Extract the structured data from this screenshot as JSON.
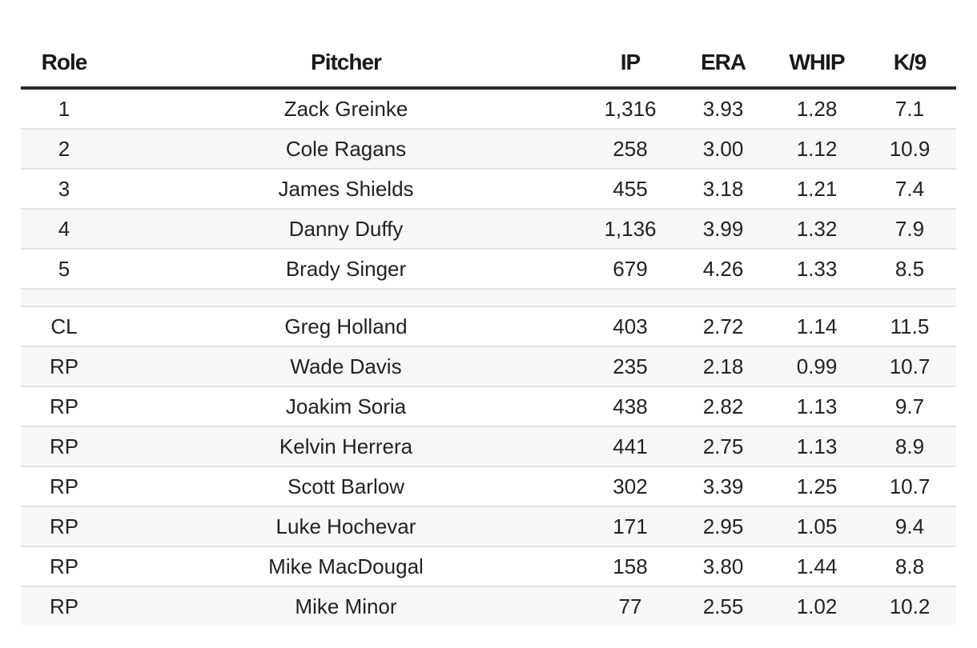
{
  "table": {
    "headers": {
      "role": "Role",
      "pitcher": "Pitcher",
      "ip": "IP",
      "era": "ERA",
      "whip": "WHIP",
      "k9": "K/9"
    },
    "rows": [
      {
        "role": "1",
        "pitcher": "Zack Greinke",
        "ip": "1,316",
        "era": "3.93",
        "whip": "1.28",
        "k9": "7.1"
      },
      {
        "role": "2",
        "pitcher": "Cole Ragans",
        "ip": "258",
        "era": "3.00",
        "whip": "1.12",
        "k9": "10.9"
      },
      {
        "role": "3",
        "pitcher": "James Shields",
        "ip": "455",
        "era": "3.18",
        "whip": "1.21",
        "k9": "7.4"
      },
      {
        "role": "4",
        "pitcher": "Danny Duffy",
        "ip": "1,136",
        "era": "3.99",
        "whip": "1.32",
        "k9": "7.9"
      },
      {
        "role": "5",
        "pitcher": "Brady Singer",
        "ip": "679",
        "era": "4.26",
        "whip": "1.33",
        "k9": "8.5"
      },
      {
        "role": "CL",
        "pitcher": "Greg Holland",
        "ip": "403",
        "era": "2.72",
        "whip": "1.14",
        "k9": "11.5"
      },
      {
        "role": "RP",
        "pitcher": "Wade Davis",
        "ip": "235",
        "era": "2.18",
        "whip": "0.99",
        "k9": "10.7"
      },
      {
        "role": "RP",
        "pitcher": "Joakim Soria",
        "ip": "438",
        "era": "2.82",
        "whip": "1.13",
        "k9": "9.7"
      },
      {
        "role": "RP",
        "pitcher": "Kelvin Herrera",
        "ip": "441",
        "era": "2.75",
        "whip": "1.13",
        "k9": "8.9"
      },
      {
        "role": "RP",
        "pitcher": "Scott Barlow",
        "ip": "302",
        "era": "3.39",
        "whip": "1.25",
        "k9": "10.7"
      },
      {
        "role": "RP",
        "pitcher": "Luke Hochevar",
        "ip": "171",
        "era": "2.95",
        "whip": "1.05",
        "k9": "9.4"
      },
      {
        "role": "RP",
        "pitcher": "Mike MacDougal",
        "ip": "158",
        "era": "3.80",
        "whip": "1.44",
        "k9": "8.8"
      },
      {
        "role": "RP",
        "pitcher": "Mike Minor",
        "ip": "77",
        "era": "2.55",
        "whip": "1.02",
        "k9": "10.2"
      }
    ]
  }
}
